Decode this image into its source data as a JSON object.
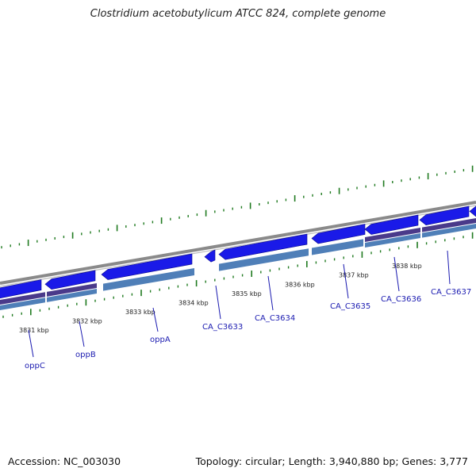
{
  "title": "Clostridium acetobutylicum ATCC 824, complete genome",
  "footer": {
    "accession": "Accession: NC_003030",
    "summary": "Topology: circular; Length: 3,940,880 bp; Genes: 3,777"
  },
  "colors": {
    "gene_forward": "#1a1ae8",
    "gene_reverse": "#2a2aa8",
    "cds_band": "#4f7fb8",
    "purple_band": "#4a3a8a",
    "backbone": "#8a8a8a",
    "ticks": "#1f7a1f"
  },
  "scale": {
    "labels": [
      "3831 kbp",
      "3832 kbp",
      "3833 kbp",
      "3834 kbp",
      "3835 kbp",
      "3836 kbp",
      "3837 kbp",
      "3838 kbp"
    ]
  },
  "genes": [
    {
      "name": "oppC"
    },
    {
      "name": "oppB"
    },
    {
      "name": "oppA"
    },
    {
      "name": "CA_C3633"
    },
    {
      "name": "CA_C3634"
    },
    {
      "name": "CA_C3635"
    },
    {
      "name": "CA_C3636"
    },
    {
      "name": "CA_C3637"
    }
  ]
}
